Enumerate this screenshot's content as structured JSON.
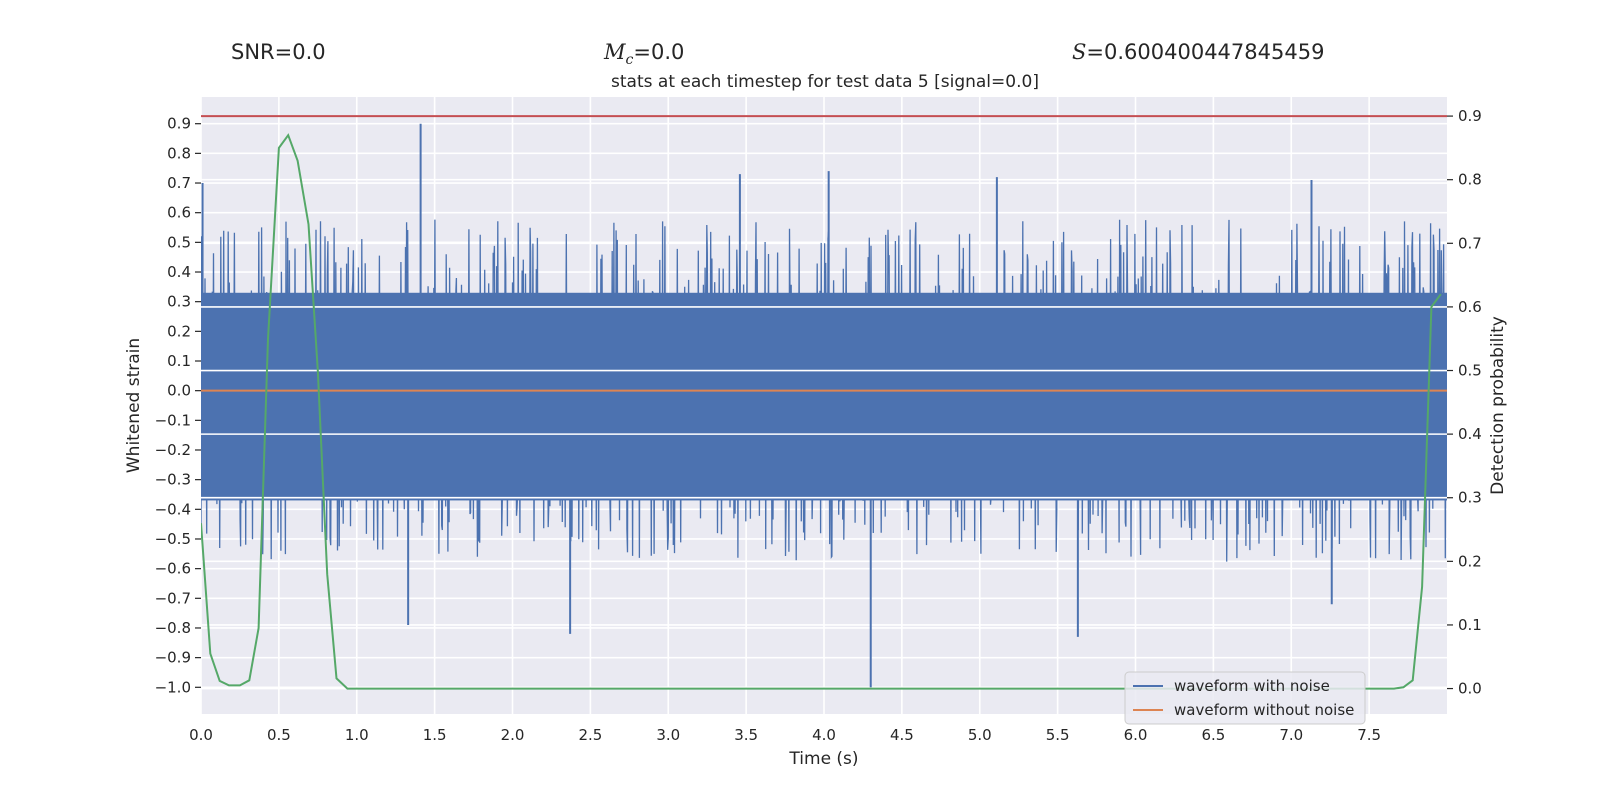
{
  "header": {
    "snr_label": "SNR",
    "snr_value": "=0.0",
    "mc_symbol": "M",
    "mc_sub": "c",
    "mc_value": "=0.0",
    "s_symbol": "S",
    "s_value": "=0.600400447845459"
  },
  "chart_data": {
    "type": "line",
    "title": "stats at each timestep for test data 5 [signal=0.0]",
    "xlabel": "Time (s)",
    "ylabel": "Whitened strain",
    "y2label": "Detection probability",
    "xlim": [
      0.0,
      8.0
    ],
    "ylim": [
      -1.09,
      0.99
    ],
    "y2lim": [
      -0.04,
      0.93
    ],
    "x_ticks": [
      "0.0",
      "0.5",
      "1.0",
      "1.5",
      "2.0",
      "2.5",
      "3.0",
      "3.5",
      "4.0",
      "4.5",
      "5.0",
      "5.5",
      "6.0",
      "6.5",
      "7.0",
      "7.5"
    ],
    "y_ticks": [
      "0.9",
      "0.8",
      "0.7",
      "0.6",
      "0.5",
      "0.4",
      "0.3",
      "0.2",
      "0.1",
      "0.0",
      "-0.1",
      "-0.2",
      "-0.3",
      "-0.4",
      "-0.5",
      "-0.6",
      "-0.7",
      "-0.8",
      "-0.9",
      "-1.0"
    ],
    "y2_ticks": [
      "0.9",
      "0.8",
      "0.7",
      "0.6",
      "0.5",
      "0.4",
      "0.3",
      "0.2",
      "0.1",
      "0.0"
    ],
    "grid": true,
    "legend_position": "lower-right",
    "threshold": {
      "axis": "right",
      "value": 0.9,
      "color": "#c44e52"
    },
    "series": [
      {
        "name": "waveform with noise",
        "axis": "left",
        "color": "#4c72b0",
        "kind": "dense-noise",
        "notable_peaks": [
          [
            0.01,
            0.7
          ],
          [
            1.41,
            0.9
          ],
          [
            3.46,
            0.73
          ],
          [
            4.03,
            0.74
          ],
          [
            5.11,
            0.72
          ],
          [
            7.13,
            0.71
          ]
        ],
        "notable_troughs": [
          [
            1.33,
            -0.79
          ],
          [
            2.37,
            -0.82
          ],
          [
            4.3,
            -1.0
          ],
          [
            5.63,
            -0.83
          ],
          [
            7.26,
            -0.72
          ]
        ],
        "band": [
          -0.37,
          0.33
        ]
      },
      {
        "name": "waveform without noise",
        "axis": "left",
        "color": "#dd8452",
        "x": [
          0.0,
          8.0
        ],
        "y": [
          0.0,
          0.0
        ]
      },
      {
        "name": "",
        "axis": "right",
        "color": "#55a868",
        "x": [
          0.0,
          0.06,
          0.12,
          0.18,
          0.25,
          0.31,
          0.37,
          0.43,
          0.5,
          0.56,
          0.62,
          0.69,
          0.75,
          0.81,
          0.87,
          0.94,
          1.0,
          7.66,
          7.72,
          7.78,
          7.84,
          7.9,
          7.96
        ],
        "y": [
          0.26,
          0.055,
          0.012,
          0.005,
          0.005,
          0.013,
          0.095,
          0.55,
          0.85,
          0.87,
          0.83,
          0.73,
          0.5,
          0.18,
          0.016,
          0.0,
          0.0,
          0.0,
          0.002,
          0.013,
          0.16,
          0.6,
          0.62
        ]
      }
    ]
  }
}
